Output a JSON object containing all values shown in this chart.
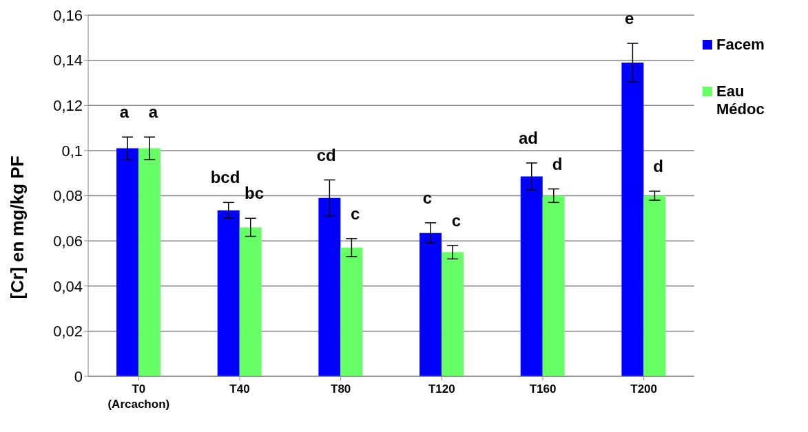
{
  "chart_data": {
    "type": "bar",
    "ylabel": "[Cr] en mg/kg PF",
    "categories": [
      "T0\n(Arcachon)",
      "T40",
      "T80",
      "T120",
      "T160",
      "T200"
    ],
    "series": [
      {
        "name": "Facem",
        "color": "#0000ff",
        "values": [
          0.101,
          0.0735,
          0.079,
          0.0635,
          0.0885,
          0.139
        ],
        "errors": [
          0.005,
          0.0035,
          0.008,
          0.0045,
          0.006,
          0.0085
        ]
      },
      {
        "name": "Eau Médoc",
        "color": "#66ff66",
        "values": [
          0.101,
          0.066,
          0.057,
          0.055,
          0.08,
          0.08
        ],
        "errors": [
          0.005,
          0.004,
          0.004,
          0.003,
          0.003,
          0.002
        ]
      }
    ],
    "ylim": [
      0,
      0.16
    ],
    "yticks": [
      {
        "value": 0,
        "label": "0"
      },
      {
        "value": 0.02,
        "label": "0,02"
      },
      {
        "value": 0.04,
        "label": "0,04"
      },
      {
        "value": 0.06,
        "label": "0,06"
      },
      {
        "value": 0.08,
        "label": "0,08"
      },
      {
        "value": 0.1,
        "label": "0,1"
      },
      {
        "value": 0.12,
        "label": "0,12"
      },
      {
        "value": 0.14,
        "label": "0,14"
      },
      {
        "value": 0.16,
        "label": "0,16"
      }
    ],
    "grid": "y",
    "legend": "right",
    "annotations": [
      "a",
      "a",
      "bcd",
      "bc",
      "cd",
      "c",
      "c",
      "c",
      "ad",
      "d",
      "e",
      "d"
    ]
  }
}
